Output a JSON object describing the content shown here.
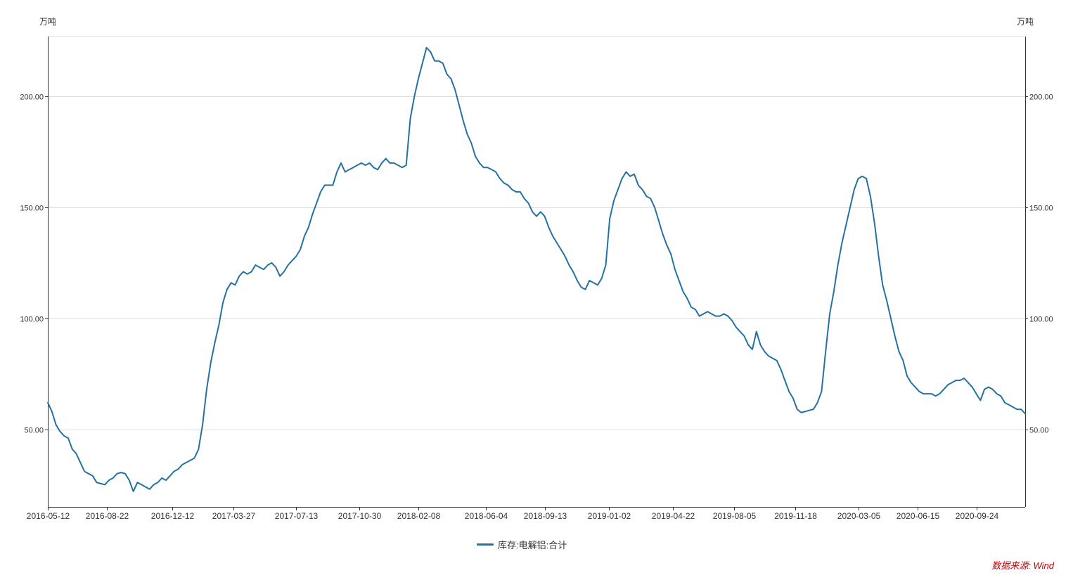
{
  "colors": {
    "series": "#2471a3",
    "grid": "#dddddd",
    "axis": "#333333",
    "text": "#333333",
    "source": "#c00000"
  },
  "chart_data": {
    "type": "line",
    "title": "",
    "y_unit_left": "万吨",
    "y_unit_right": "万吨",
    "ylim": [
      15,
      227
    ],
    "yticks": [
      50,
      100,
      150,
      200
    ],
    "ytick_labels": [
      "50.00",
      "100.00",
      "150.00",
      "200.00"
    ],
    "xlim": [
      "2016-05-12",
      "2020-12-17"
    ],
    "xtick_labels": [
      "2016-05-12",
      "2016-08-22",
      "2016-12-12",
      "2017-03-27",
      "2017-07-13",
      "2017-10-30",
      "2018-02-08",
      "2018-06-04",
      "2018-09-13",
      "2019-01-02",
      "2019-04-22",
      "2019-08-05",
      "2019-11-18",
      "2020-03-05",
      "2020-06-15",
      "2020-09-24"
    ],
    "grid": true,
    "legend_position": "bottom-center",
    "series": [
      {
        "name": "库存:电解铝:合计",
        "points": [
          [
            "2016-05-12",
            62
          ],
          [
            "2016-05-19",
            58
          ],
          [
            "2016-05-26",
            52
          ],
          [
            "2016-06-02",
            49
          ],
          [
            "2016-06-09",
            47
          ],
          [
            "2016-06-16",
            46
          ],
          [
            "2016-06-23",
            41
          ],
          [
            "2016-06-30",
            39
          ],
          [
            "2016-07-07",
            35
          ],
          [
            "2016-07-14",
            31
          ],
          [
            "2016-07-21",
            30
          ],
          [
            "2016-07-28",
            29
          ],
          [
            "2016-08-04",
            26
          ],
          [
            "2016-08-11",
            25.5
          ],
          [
            "2016-08-18",
            25
          ],
          [
            "2016-08-25",
            27
          ],
          [
            "2016-09-01",
            28
          ],
          [
            "2016-09-08",
            30
          ],
          [
            "2016-09-15",
            30.5
          ],
          [
            "2016-09-22",
            30
          ],
          [
            "2016-09-29",
            27
          ],
          [
            "2016-10-06",
            22
          ],
          [
            "2016-10-13",
            26
          ],
          [
            "2016-10-20",
            25
          ],
          [
            "2016-10-27",
            24
          ],
          [
            "2016-11-03",
            23
          ],
          [
            "2016-11-10",
            25
          ],
          [
            "2016-11-17",
            26
          ],
          [
            "2016-11-24",
            28
          ],
          [
            "2016-12-01",
            27
          ],
          [
            "2016-12-08",
            29
          ],
          [
            "2016-12-15",
            31
          ],
          [
            "2016-12-22",
            32
          ],
          [
            "2016-12-29",
            34
          ],
          [
            "2017-01-05",
            35
          ],
          [
            "2017-01-12",
            36
          ],
          [
            "2017-01-19",
            37
          ],
          [
            "2017-01-26",
            41
          ],
          [
            "2017-02-02",
            52
          ],
          [
            "2017-02-09",
            68
          ],
          [
            "2017-02-16",
            80
          ],
          [
            "2017-02-23",
            89
          ],
          [
            "2017-03-02",
            97
          ],
          [
            "2017-03-09",
            107
          ],
          [
            "2017-03-16",
            113
          ],
          [
            "2017-03-23",
            116
          ],
          [
            "2017-03-30",
            115
          ],
          [
            "2017-04-06",
            119
          ],
          [
            "2017-04-13",
            121
          ],
          [
            "2017-04-20",
            120
          ],
          [
            "2017-04-27",
            121
          ],
          [
            "2017-05-04",
            124
          ],
          [
            "2017-05-11",
            123
          ],
          [
            "2017-05-18",
            122
          ],
          [
            "2017-05-25",
            124
          ],
          [
            "2017-06-01",
            125
          ],
          [
            "2017-06-08",
            123
          ],
          [
            "2017-06-15",
            119
          ],
          [
            "2017-06-22",
            121
          ],
          [
            "2017-06-29",
            124
          ],
          [
            "2017-07-06",
            126
          ],
          [
            "2017-07-13",
            128
          ],
          [
            "2017-07-20",
            131
          ],
          [
            "2017-07-27",
            137
          ],
          [
            "2017-08-03",
            141
          ],
          [
            "2017-08-10",
            147
          ],
          [
            "2017-08-17",
            152
          ],
          [
            "2017-08-24",
            157
          ],
          [
            "2017-08-31",
            160
          ],
          [
            "2017-09-07",
            160
          ],
          [
            "2017-09-14",
            160
          ],
          [
            "2017-09-21",
            166
          ],
          [
            "2017-09-28",
            170
          ],
          [
            "2017-10-05",
            166
          ],
          [
            "2017-10-12",
            167
          ],
          [
            "2017-10-19",
            168
          ],
          [
            "2017-10-26",
            169
          ],
          [
            "2017-11-02",
            170
          ],
          [
            "2017-11-09",
            169
          ],
          [
            "2017-11-16",
            170
          ],
          [
            "2017-11-23",
            168
          ],
          [
            "2017-11-30",
            167
          ],
          [
            "2017-12-07",
            170
          ],
          [
            "2017-12-14",
            172
          ],
          [
            "2017-12-21",
            170
          ],
          [
            "2017-12-28",
            170
          ],
          [
            "2018-01-04",
            169
          ],
          [
            "2018-01-11",
            168
          ],
          [
            "2018-01-18",
            169
          ],
          [
            "2018-01-25",
            190
          ],
          [
            "2018-02-01",
            200
          ],
          [
            "2018-02-08",
            208
          ],
          [
            "2018-02-15",
            215
          ],
          [
            "2018-02-22",
            222
          ],
          [
            "2018-03-01",
            220
          ],
          [
            "2018-03-08",
            216
          ],
          [
            "2018-03-15",
            216
          ],
          [
            "2018-03-22",
            215
          ],
          [
            "2018-03-29",
            210
          ],
          [
            "2018-04-05",
            208
          ],
          [
            "2018-04-12",
            203
          ],
          [
            "2018-04-19",
            196
          ],
          [
            "2018-04-26",
            189
          ],
          [
            "2018-05-03",
            183
          ],
          [
            "2018-05-10",
            179
          ],
          [
            "2018-05-17",
            173
          ],
          [
            "2018-05-24",
            170
          ],
          [
            "2018-05-31",
            168
          ],
          [
            "2018-06-07",
            168
          ],
          [
            "2018-06-14",
            167
          ],
          [
            "2018-06-21",
            166
          ],
          [
            "2018-06-28",
            163
          ],
          [
            "2018-07-05",
            161
          ],
          [
            "2018-07-12",
            160
          ],
          [
            "2018-07-19",
            158
          ],
          [
            "2018-07-26",
            157
          ],
          [
            "2018-08-02",
            157
          ],
          [
            "2018-08-09",
            154
          ],
          [
            "2018-08-16",
            152
          ],
          [
            "2018-08-23",
            148
          ],
          [
            "2018-08-30",
            146
          ],
          [
            "2018-09-06",
            148
          ],
          [
            "2018-09-13",
            146
          ],
          [
            "2018-09-20",
            141
          ],
          [
            "2018-09-27",
            137
          ],
          [
            "2018-10-04",
            134
          ],
          [
            "2018-10-11",
            131
          ],
          [
            "2018-10-18",
            128
          ],
          [
            "2018-10-25",
            124
          ],
          [
            "2018-11-01",
            121
          ],
          [
            "2018-11-08",
            117
          ],
          [
            "2018-11-15",
            114
          ],
          [
            "2018-11-22",
            113
          ],
          [
            "2018-11-29",
            117
          ],
          [
            "2018-12-06",
            116
          ],
          [
            "2018-12-13",
            115
          ],
          [
            "2018-12-20",
            118
          ],
          [
            "2018-12-27",
            124
          ],
          [
            "2019-01-03",
            145
          ],
          [
            "2019-01-10",
            153
          ],
          [
            "2019-01-17",
            158
          ],
          [
            "2019-01-24",
            163
          ],
          [
            "2019-01-31",
            166
          ],
          [
            "2019-02-07",
            164
          ],
          [
            "2019-02-14",
            165
          ],
          [
            "2019-02-21",
            160
          ],
          [
            "2019-02-28",
            158
          ],
          [
            "2019-03-07",
            155
          ],
          [
            "2019-03-14",
            154
          ],
          [
            "2019-03-21",
            150
          ],
          [
            "2019-03-28",
            144
          ],
          [
            "2019-04-04",
            138
          ],
          [
            "2019-04-11",
            133
          ],
          [
            "2019-04-18",
            129
          ],
          [
            "2019-04-25",
            122
          ],
          [
            "2019-05-02",
            117
          ],
          [
            "2019-05-09",
            112
          ],
          [
            "2019-05-16",
            109
          ],
          [
            "2019-05-23",
            105
          ],
          [
            "2019-05-30",
            104
          ],
          [
            "2019-06-06",
            101
          ],
          [
            "2019-06-13",
            102
          ],
          [
            "2019-06-20",
            103
          ],
          [
            "2019-06-27",
            102
          ],
          [
            "2019-07-04",
            101
          ],
          [
            "2019-07-11",
            101
          ],
          [
            "2019-07-18",
            102
          ],
          [
            "2019-07-25",
            101
          ],
          [
            "2019-08-01",
            99
          ],
          [
            "2019-08-08",
            96
          ],
          [
            "2019-08-15",
            94
          ],
          [
            "2019-08-22",
            92
          ],
          [
            "2019-08-29",
            88
          ],
          [
            "2019-09-05",
            86
          ],
          [
            "2019-09-12",
            94
          ],
          [
            "2019-09-19",
            88
          ],
          [
            "2019-09-26",
            85
          ],
          [
            "2019-10-03",
            83
          ],
          [
            "2019-10-10",
            82
          ],
          [
            "2019-10-17",
            81
          ],
          [
            "2019-10-24",
            77
          ],
          [
            "2019-10-31",
            72
          ],
          [
            "2019-11-07",
            67
          ],
          [
            "2019-11-14",
            64
          ],
          [
            "2019-11-21",
            59
          ],
          [
            "2019-11-28",
            57.5
          ],
          [
            "2019-12-05",
            58
          ],
          [
            "2019-12-12",
            58.5
          ],
          [
            "2019-12-19",
            59
          ],
          [
            "2019-12-26",
            62
          ],
          [
            "2020-01-02",
            67
          ],
          [
            "2020-01-09",
            85
          ],
          [
            "2020-01-16",
            102
          ],
          [
            "2020-01-23",
            112
          ],
          [
            "2020-01-30",
            124
          ],
          [
            "2020-02-06",
            134
          ],
          [
            "2020-02-13",
            142
          ],
          [
            "2020-02-20",
            150
          ],
          [
            "2020-02-27",
            158
          ],
          [
            "2020-03-05",
            163
          ],
          [
            "2020-03-12",
            164
          ],
          [
            "2020-03-19",
            163
          ],
          [
            "2020-03-26",
            155
          ],
          [
            "2020-04-02",
            143
          ],
          [
            "2020-04-09",
            128
          ],
          [
            "2020-04-16",
            115
          ],
          [
            "2020-04-23",
            108
          ],
          [
            "2020-04-30",
            100
          ],
          [
            "2020-05-07",
            92
          ],
          [
            "2020-05-14",
            85
          ],
          [
            "2020-05-21",
            81
          ],
          [
            "2020-05-28",
            74
          ],
          [
            "2020-06-04",
            71
          ],
          [
            "2020-06-11",
            69
          ],
          [
            "2020-06-18",
            67
          ],
          [
            "2020-06-25",
            66
          ],
          [
            "2020-07-02",
            66
          ],
          [
            "2020-07-09",
            66
          ],
          [
            "2020-07-16",
            65
          ],
          [
            "2020-07-23",
            66
          ],
          [
            "2020-07-30",
            68
          ],
          [
            "2020-08-06",
            70
          ],
          [
            "2020-08-13",
            71
          ],
          [
            "2020-08-20",
            72
          ],
          [
            "2020-08-27",
            72
          ],
          [
            "2020-09-03",
            73
          ],
          [
            "2020-09-10",
            71
          ],
          [
            "2020-09-17",
            69
          ],
          [
            "2020-09-24",
            66
          ],
          [
            "2020-10-01",
            63
          ],
          [
            "2020-10-08",
            68
          ],
          [
            "2020-10-15",
            69
          ],
          [
            "2020-10-22",
            68
          ],
          [
            "2020-10-29",
            66
          ],
          [
            "2020-11-05",
            65
          ],
          [
            "2020-11-12",
            62
          ],
          [
            "2020-11-19",
            61
          ],
          [
            "2020-11-26",
            60
          ],
          [
            "2020-12-03",
            59
          ],
          [
            "2020-12-10",
            59
          ],
          [
            "2020-12-17",
            57
          ]
        ]
      }
    ]
  },
  "legend": {
    "label": "库存:电解铝:合计"
  },
  "source": {
    "text": "数据来源: Wind"
  }
}
